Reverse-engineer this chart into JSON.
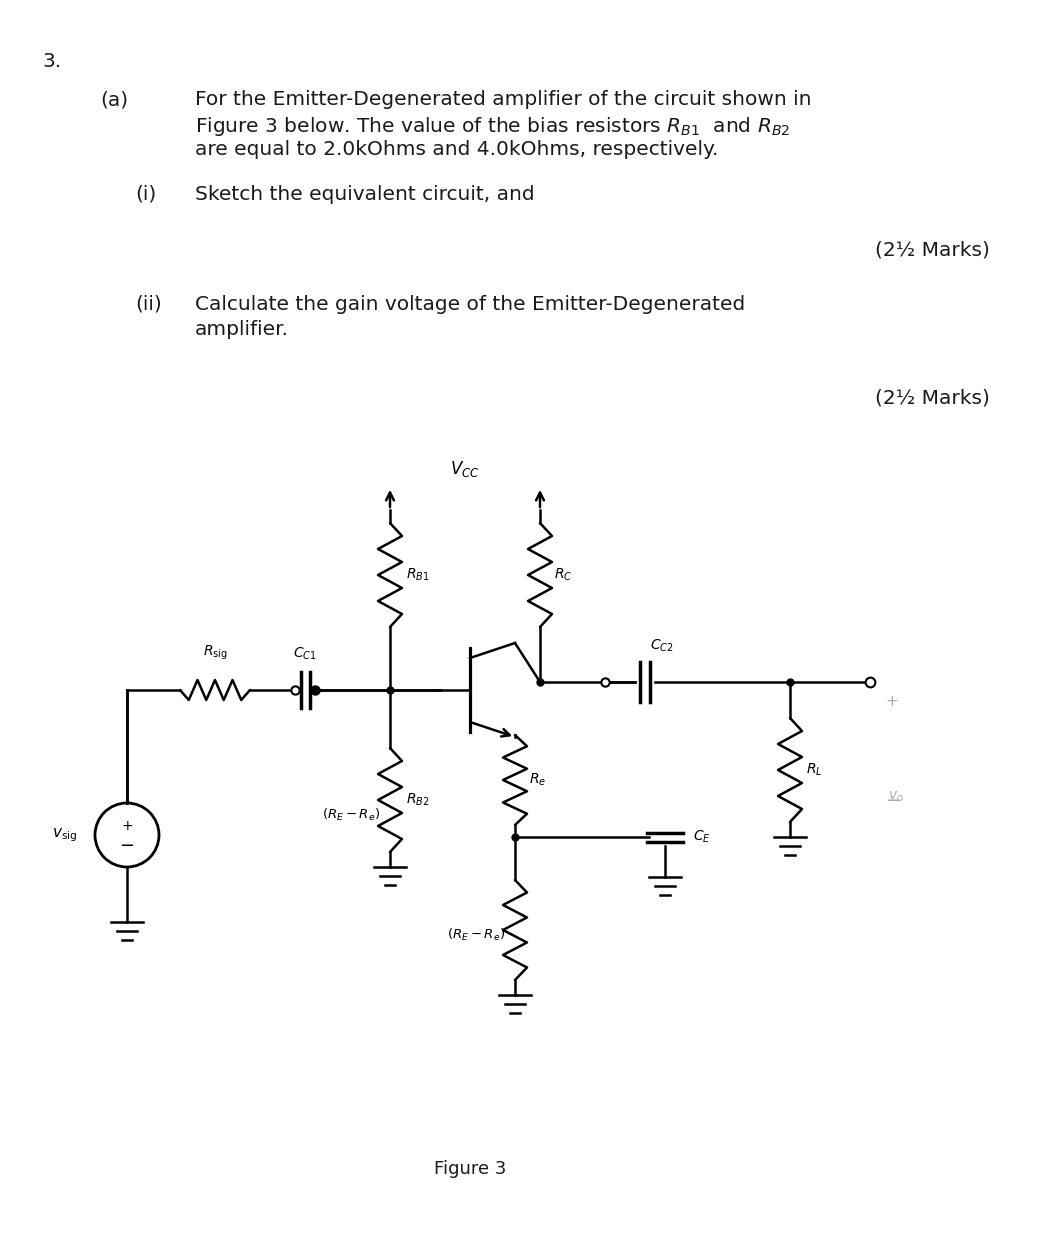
{
  "title": "3.",
  "part_a_label": "(a)",
  "part_i_label": "(i)",
  "part_i_text": "Sketch the equivalent circuit, and",
  "marks_1": "(2½ Marks)",
  "part_ii_label": "(ii)",
  "part_ii_line1": "Calculate the gain voltage of the Emitter-Degenerated",
  "part_ii_line2": "amplifier.",
  "marks_2": "(2½ Marks)",
  "figure_label": "Figure 3",
  "bg_color": "#ffffff",
  "text_color": "#1a1a1a",
  "circuit_color": "#000000",
  "gray_color": "#aaaaaa",
  "line1": "For the Emitter-Degenerated amplifier of the circuit shown in",
  "line2a": "Figure 3 below. The value of the bias resistors ",
  "line2b": "  and ",
  "line3": "are equal to 2.0kOhms and 4.0kOhms, respectively."
}
